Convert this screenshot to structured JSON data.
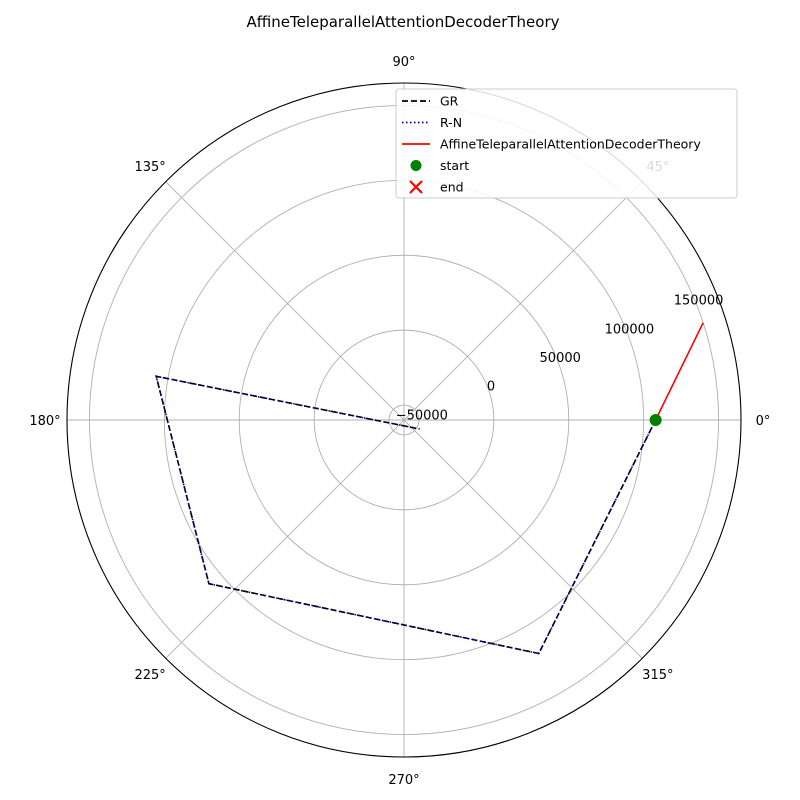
{
  "chart_data": {
    "type": "line",
    "projection": "polar",
    "title": "AffineTeleparallelAttentionDecoderTheory",
    "angle_ticks": [
      "0°",
      "45°",
      "90°",
      "135°",
      "180°",
      "225°",
      "270°",
      "315°"
    ],
    "radial_ticks": [
      -50000,
      0,
      50000,
      100000,
      150000
    ],
    "radial_tick_labels": [
      "−50000",
      "0",
      "50000",
      "100000",
      "150000"
    ],
    "rlim": [
      -60000,
      165000
    ],
    "grid": true,
    "legend_position": "top-right",
    "series": [
      {
        "name": "GR",
        "color": "#000000",
        "style": "dashed",
        "points": [
          {
            "theta": 0,
            "r": 108000
          },
          {
            "theta": 300,
            "r": 120000
          },
          {
            "theta": 220,
            "r": 110000
          },
          {
            "theta": 170,
            "r": 108000
          },
          {
            "theta": 330,
            "r": -48000
          }
        ]
      },
      {
        "name": "R-N",
        "color": "#00008b",
        "style": "dotted",
        "points": [
          {
            "theta": 0,
            "r": 108000
          },
          {
            "theta": 300,
            "r": 120000
          },
          {
            "theta": 220,
            "r": 110000
          },
          {
            "theta": 170,
            "r": 108000
          },
          {
            "theta": 330,
            "r": -48000
          }
        ]
      },
      {
        "name": "AffineTeleparallelAttentionDecoderTheory",
        "color": "#ff0000",
        "style": "solid",
        "points": [
          {
            "theta": 0,
            "r": 108000
          },
          {
            "theta": 18,
            "r": 150000
          }
        ]
      }
    ],
    "markers": [
      {
        "name": "start",
        "color": "#008000",
        "shape": "circle",
        "theta": 0,
        "r": 108000
      },
      {
        "name": "end",
        "color": "#ff0000",
        "shape": "x"
      }
    ]
  }
}
